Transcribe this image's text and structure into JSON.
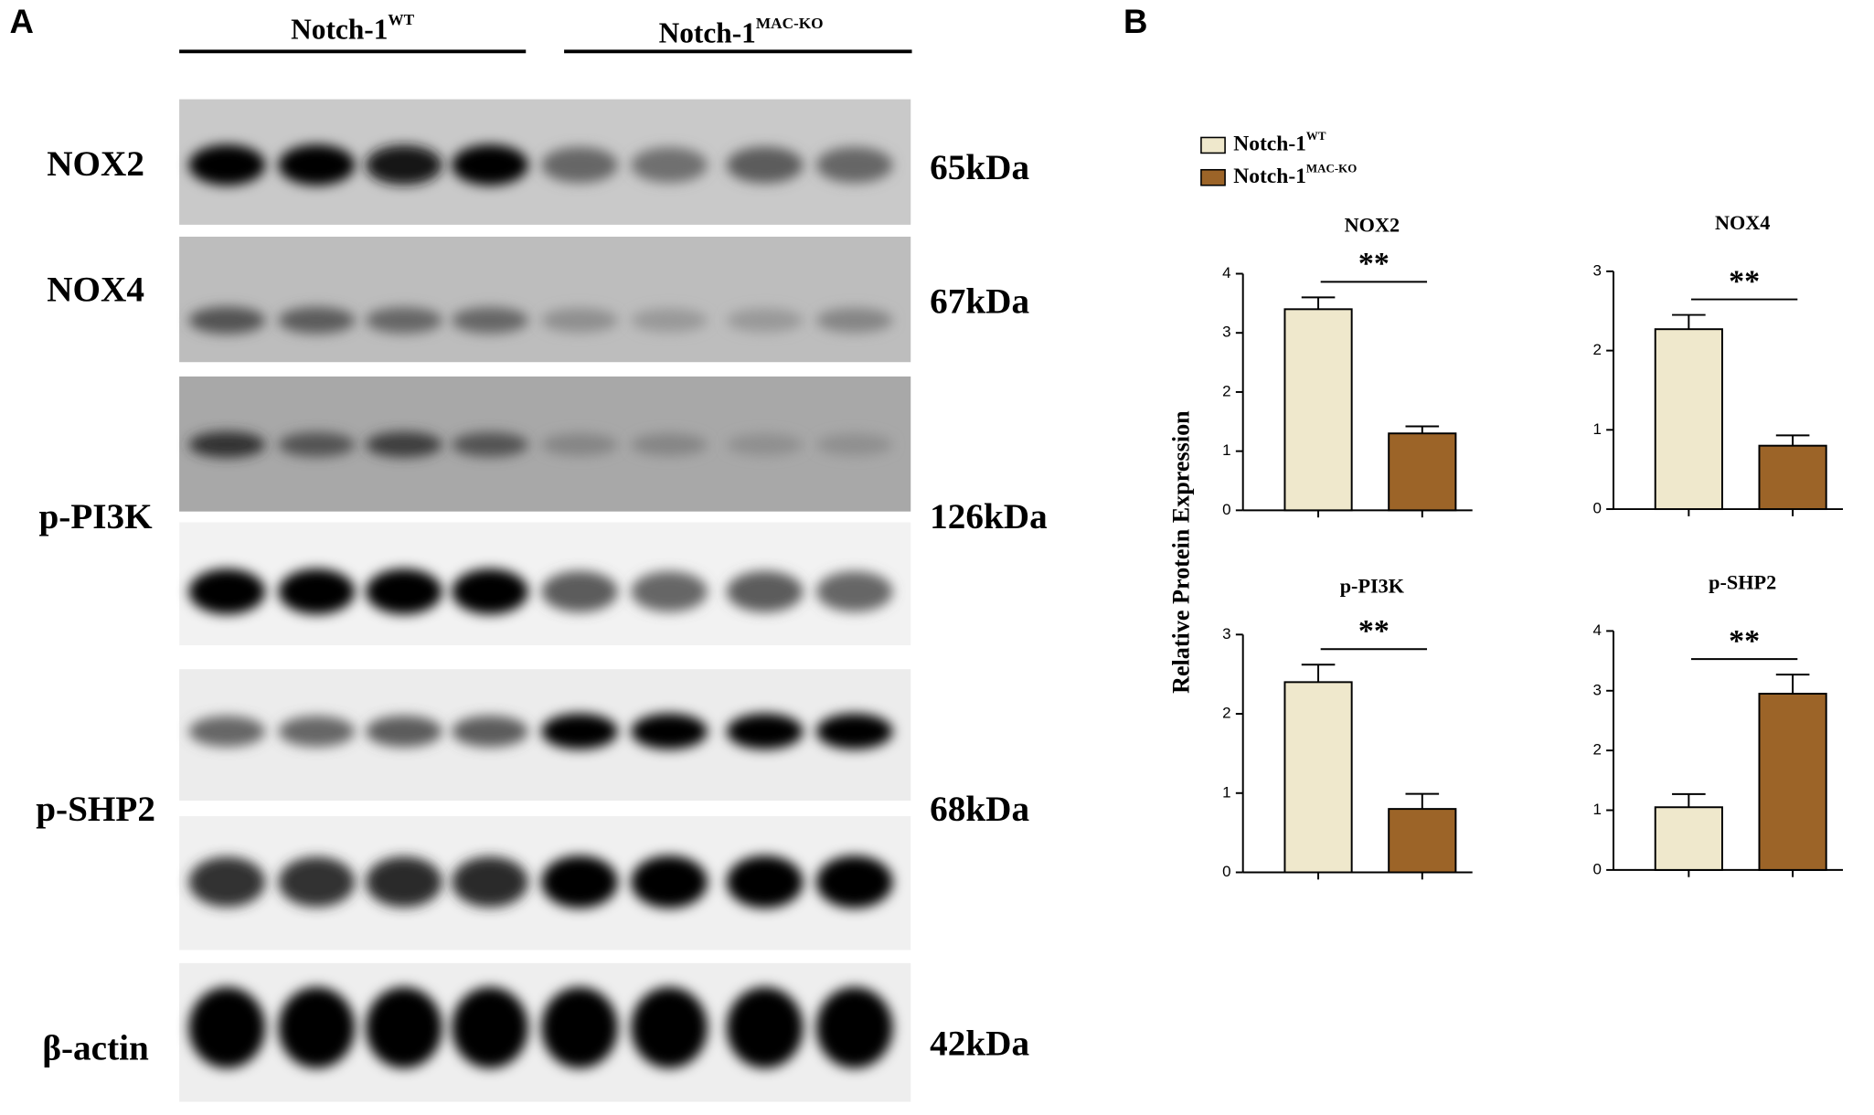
{
  "panel_a": {
    "label": "A",
    "groups": [
      {
        "name": "Notch-1",
        "sup": "WT"
      },
      {
        "name": "Notch-1",
        "sup": "MAC-KO"
      }
    ],
    "proteins": [
      {
        "name": "NOX2",
        "weight": "65kDa"
      },
      {
        "name": "NOX4",
        "weight": "67kDa"
      },
      {
        "name": "p-PI3K",
        "weight": "126kDa"
      },
      {
        "name": "p-SHP2",
        "weight": "68kDa"
      },
      {
        "name": "β-actin",
        "weight": "42kDa"
      }
    ]
  },
  "panel_b": {
    "label": "B",
    "y_label": "Relative Protein Expression",
    "legend": [
      {
        "name": "Notch-1",
        "sup": "WT",
        "color": "#efe8cc"
      },
      {
        "name": "Notch-1",
        "sup": "MAC-KO",
        "color": "#9c6428"
      }
    ]
  },
  "chart_data": [
    {
      "type": "bar",
      "title": "NOX2",
      "categories": [
        null,
        null
      ],
      "values": [
        3.4,
        1.3
      ],
      "errors": [
        0.2,
        0.12
      ],
      "ylim": [
        0,
        4
      ],
      "yticks": [
        0,
        1,
        2,
        3,
        4
      ],
      "annotation": "**"
    },
    {
      "type": "bar",
      "title": "NOX4",
      "categories": [
        null,
        null
      ],
      "values": [
        2.27,
        0.8
      ],
      "errors": [
        0.18,
        0.13
      ],
      "ylim": [
        0,
        3
      ],
      "yticks": [
        0,
        1,
        2,
        3
      ],
      "annotation": "**"
    },
    {
      "type": "bar",
      "title": "p-PI3K",
      "categories": [
        null,
        null
      ],
      "values": [
        2.4,
        0.8
      ],
      "errors": [
        0.22,
        0.19
      ],
      "ylim": [
        0,
        3
      ],
      "yticks": [
        0,
        1,
        2,
        3
      ],
      "annotation": "**"
    },
    {
      "type": "bar",
      "title": "p-SHP2",
      "categories": [
        null,
        null
      ],
      "values": [
        1.05,
        2.95
      ],
      "errors": [
        0.22,
        0.32
      ],
      "ylim": [
        0,
        4
      ],
      "yticks": [
        0,
        1,
        2,
        3,
        4
      ],
      "annotation": "**"
    }
  ]
}
